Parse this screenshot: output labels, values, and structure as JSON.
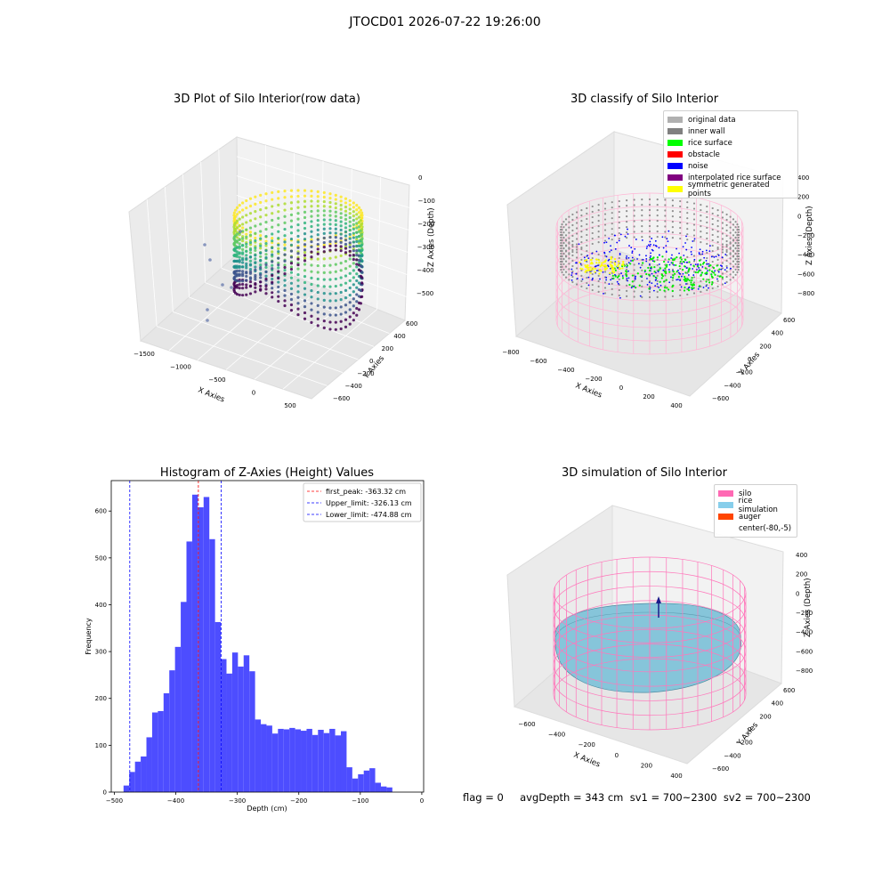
{
  "suptitle": "JTOCD01 2026-07-22 19:26:00",
  "footer": "flag = 0     avgDepth = 343 cm  sv1 = 700~2300  sv2 = 700~2300",
  "panels": {
    "raw": {
      "title": "3D Plot of Silo Interior(row data)",
      "xlabel": "X Axies",
      "ylabel": "Y Axies",
      "zlabel": "Z Axies (Depth)",
      "xticks": [
        "-1500",
        "-1000",
        "-500",
        "0",
        "500"
      ],
      "yticks": [
        "600",
        "400",
        "200",
        "0",
        "-200",
        "-400",
        "-600"
      ],
      "zticks": [
        "0",
        "-100",
        "-200",
        "-300",
        "-400",
        "-500"
      ]
    },
    "classify": {
      "title": "3D classify of Silo Interior",
      "xlabel": "X Axies",
      "ylabel": "Y Axies",
      "zlabel": "Z Axies (Depth)",
      "xticks": [
        "-800",
        "-600",
        "-400",
        "-200",
        "0",
        "200",
        "400"
      ],
      "yticks": [
        "600",
        "400",
        "200",
        "0",
        "-200",
        "-400",
        "-600"
      ],
      "zticks": [
        "400",
        "200",
        "0",
        "-200",
        "-400",
        "-600",
        "-800"
      ],
      "legend": [
        {
          "label": "original data",
          "color": "#b0b0b0"
        },
        {
          "label": "inner wall",
          "color": "#808080"
        },
        {
          "label": "rice surface",
          "color": "#00ff00"
        },
        {
          "label": "obstacle",
          "color": "#ff0000"
        },
        {
          "label": "noise",
          "color": "#0000ff"
        },
        {
          "label": "interpolated rice surface",
          "color": "#800080"
        },
        {
          "label": "symmetric generated points",
          "color": "#ffff00"
        }
      ]
    },
    "simulation": {
      "title": "3D simulation of Silo Interior",
      "xlabel": "X Axies",
      "ylabel": "Y Axies",
      "zlabel": "Z Axies (Depth)",
      "xticks": [
        "-600",
        "-400",
        "-200",
        "0",
        "200",
        "400"
      ],
      "yticks": [
        "600",
        "400",
        "200",
        "0",
        "-200",
        "-400",
        "-600"
      ],
      "zticks": [
        "400",
        "200",
        "0",
        "-200",
        "-400",
        "-600",
        "-800"
      ],
      "legend": [
        {
          "label": "silo",
          "color": "#ff69b4"
        },
        {
          "label": "rice simulation",
          "color": "#87ceeb"
        },
        {
          "label": "auger",
          "color": "#ff4500"
        },
        {
          "label": "center(-80,-5)",
          "color": "#ffffff"
        }
      ]
    }
  },
  "chart_data": [
    {
      "type": "scatter",
      "title": "3D Plot of Silo Interior(row data)",
      "xlabel": "X Axies",
      "ylabel": "Y Axies",
      "zlabel": "Z Axies (Depth)",
      "xlim": [
        -1600,
        600
      ],
      "ylim": [
        -650,
        650
      ],
      "zlim": [
        -550,
        0
      ]
    },
    {
      "type": "scatter",
      "title": "3D classify of Silo Interior",
      "xlabel": "X Axies",
      "ylabel": "Y Axies",
      "zlabel": "Z Axies (Depth)",
      "xlim": [
        -850,
        500
      ],
      "ylim": [
        -650,
        650
      ],
      "zlim": [
        -900,
        400
      ],
      "series": [
        {
          "name": "original data"
        },
        {
          "name": "inner wall"
        },
        {
          "name": "rice surface"
        },
        {
          "name": "obstacle"
        },
        {
          "name": "noise"
        },
        {
          "name": "interpolated rice surface"
        },
        {
          "name": "symmetric generated points"
        }
      ]
    },
    {
      "type": "bar",
      "title": "Histogram of Z-Axies (Height) Values",
      "xlabel": "Depth (cm)",
      "ylabel": "Frequency",
      "xlim": [
        -505,
        3
      ],
      "ylim": [
        0,
        665
      ],
      "xticks": [
        -500,
        -400,
        -300,
        -200,
        -100,
        0
      ],
      "yticks": [
        0,
        100,
        200,
        300,
        400,
        500,
        600
      ],
      "bin_start": -485,
      "bin_width": 9.3,
      "values": [
        14,
        43,
        65,
        76,
        117,
        170,
        173,
        211,
        260,
        310,
        406,
        535,
        635,
        608,
        630,
        540,
        363,
        284,
        253,
        298,
        268,
        292,
        258,
        155,
        145,
        142,
        125,
        135,
        134,
        137,
        134,
        131,
        135,
        122,
        133,
        126,
        135,
        121,
        130,
        53,
        29,
        38,
        46,
        51,
        20,
        12,
        10
      ],
      "vlines": [
        {
          "name": "first_peak",
          "label": "first_peak: -363.32 cm",
          "x": -363.32,
          "color": "#ff0000"
        },
        {
          "name": "upper_limit",
          "label": "Upper_limit: -326.13 cm",
          "x": -326.13,
          "color": "#0000ff"
        },
        {
          "name": "lower_limit",
          "label": "Lower_limit: -474.88 cm",
          "x": -474.88,
          "color": "#0000ff"
        }
      ],
      "bar_color": "#4d4dff",
      "legend_position": "upper right"
    },
    {
      "type": "surface",
      "title": "3D simulation of Silo Interior",
      "xlabel": "X Axies",
      "ylabel": "Y Axies",
      "zlabel": "Z Axies (Depth)",
      "xlim": [
        -750,
        500
      ],
      "ylim": [
        -650,
        650
      ],
      "zlim": [
        -900,
        450
      ],
      "series": [
        {
          "name": "silo"
        },
        {
          "name": "rice simulation"
        },
        {
          "name": "auger"
        },
        {
          "name": "center(-80,-5)"
        }
      ]
    }
  ]
}
